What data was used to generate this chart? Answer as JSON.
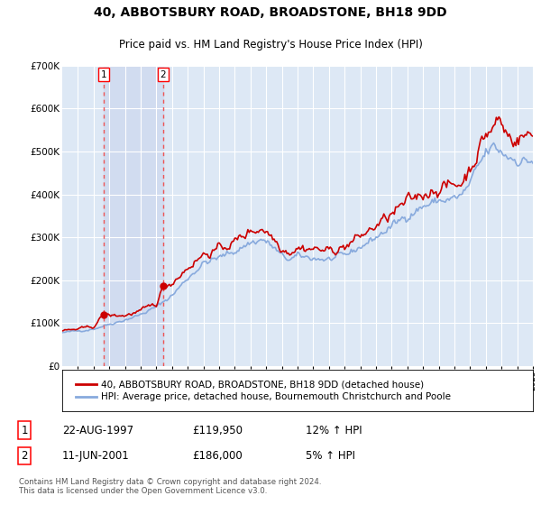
{
  "title": "40, ABBOTSBURY ROAD, BROADSTONE, BH18 9DD",
  "subtitle": "Price paid vs. HM Land Registry's House Price Index (HPI)",
  "ylim": [
    0,
    700000
  ],
  "yticks": [
    0,
    100000,
    200000,
    300000,
    400000,
    500000,
    600000,
    700000
  ],
  "ytick_labels": [
    "£0",
    "£100K",
    "£200K",
    "£300K",
    "£400K",
    "£500K",
    "£600K",
    "£700K"
  ],
  "plot_bg_color": "#dde8f5",
  "grid_color": "#ffffff",
  "sale1": {
    "date_num": 1997.63,
    "price": 119950,
    "label": "1",
    "date_str": "22-AUG-1997",
    "hpi_pct": "12% ↑ HPI"
  },
  "sale2": {
    "date_num": 2001.44,
    "price": 186000,
    "label": "2",
    "date_str": "11-JUN-2001",
    "hpi_pct": "5% ↑ HPI"
  },
  "sale_color": "#cc0000",
  "hpi_line_color": "#88aadd",
  "sale_line_color": "#cc0000",
  "dashed_line_color": "#ee5555",
  "shading_color": "#ccd8ee",
  "legend_sale_label": "40, ABBOTSBURY ROAD, BROADSTONE, BH18 9DD (detached house)",
  "legend_hpi_label": "HPI: Average price, detached house, Bournemouth Christchurch and Poole",
  "footer": "Contains HM Land Registry data © Crown copyright and database right 2024.\nThis data is licensed under the Open Government Licence v3.0.",
  "xmin": 1995,
  "xmax": 2025,
  "seed": 42
}
